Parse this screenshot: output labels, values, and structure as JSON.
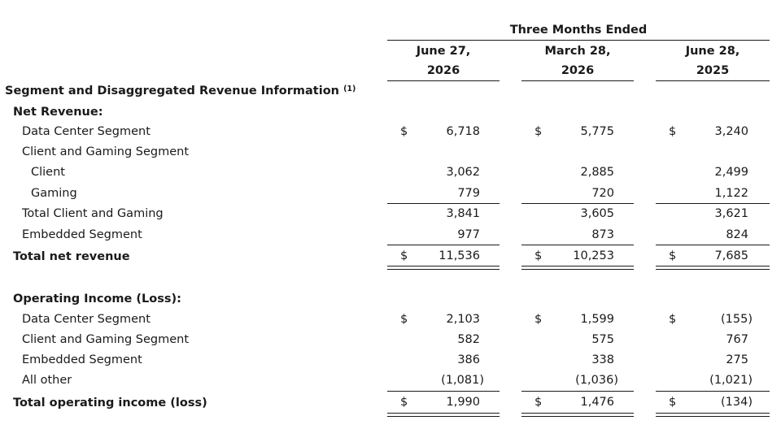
{
  "header": {
    "period_title": "Three Months Ended",
    "columns": [
      {
        "line1": "June 27,",
        "line2": "2026"
      },
      {
        "line1": "March 28,",
        "line2": "2026"
      },
      {
        "line1": "June 28,",
        "line2": "2025"
      }
    ]
  },
  "table": {
    "section_title": "Segment and Disaggregated Revenue Information",
    "section_footnote": "(1)",
    "currency_symbol": "$",
    "net_revenue": {
      "heading": "Net Revenue:",
      "rows": [
        {
          "label": "Data Center Segment",
          "values": [
            "6,718",
            "5,775",
            "3,240"
          ]
        },
        {
          "label": "Client and Gaming Segment",
          "values": [
            "",
            "",
            ""
          ]
        },
        {
          "label": "Client",
          "values": [
            "3,062",
            "2,885",
            "2,499"
          ]
        },
        {
          "label": "Gaming",
          "values": [
            "779",
            "720",
            "1,122"
          ]
        },
        {
          "label": "Total Client and Gaming",
          "values": [
            "3,841",
            "3,605",
            "3,621"
          ]
        },
        {
          "label": "Embedded Segment",
          "values": [
            "977",
            "873",
            "824"
          ]
        }
      ],
      "total": {
        "label": "Total net revenue",
        "values": [
          "11,536",
          "10,253",
          "7,685"
        ]
      }
    },
    "operating_income": {
      "heading": "Operating Income (Loss):",
      "rows": [
        {
          "label": "Data Center Segment",
          "values": [
            "2,103",
            "1,599",
            "(155)"
          ]
        },
        {
          "label": "Client and Gaming Segment",
          "values": [
            "582",
            "575",
            "767"
          ]
        },
        {
          "label": "Embedded Segment",
          "values": [
            "386",
            "338",
            "275"
          ]
        },
        {
          "label": "All other",
          "values": [
            "(1,081)",
            "(1,036)",
            "(1,021)"
          ]
        }
      ],
      "total": {
        "label": "Total operating income (loss)",
        "values": [
          "1,990",
          "1,476",
          "(134)"
        ]
      }
    }
  }
}
